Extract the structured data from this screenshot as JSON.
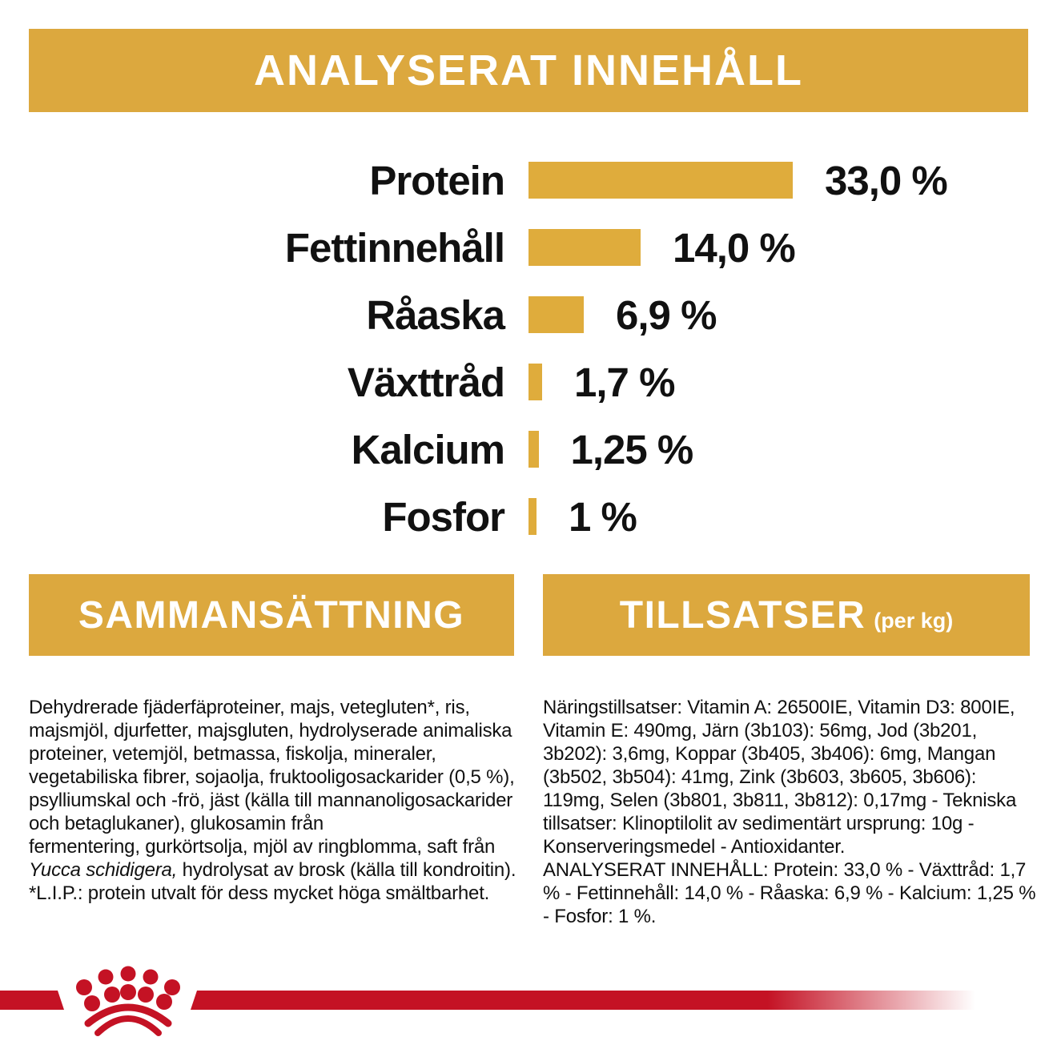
{
  "header": {
    "title": "ANALYSERAT INNEHÅLL"
  },
  "chart_data": {
    "type": "bar",
    "orientation": "horizontal",
    "title": "ANALYSERAT INNEHÅLL",
    "categories": [
      "Protein",
      "Fettinnehåll",
      "Råaska",
      "Växttråd",
      "Kalcium",
      "Fosfor"
    ],
    "values": [
      33.0,
      14.0,
      6.9,
      1.7,
      1.25,
      1.0
    ],
    "value_labels": [
      "33,0 %",
      "14,0 %",
      "6,9 %",
      "1,7 %",
      "1,25 %",
      "1 %"
    ],
    "unit": "%",
    "xlim": [
      0,
      33
    ],
    "grid": false,
    "bar_color": "#DFAC3C"
  },
  "composition": {
    "heading": "SAMMANSÄTTNING",
    "text_before_italic": "Dehydrerade fjäderfäproteiner, majs, vetegluten*, ris, majsmjöl, djurfetter, majsgluten, hydrolyserade animaliska proteiner, vetemjöl, betmassa, fiskolja, mineraler, vegetabiliska fibrer, sojaolja, fruktooligosackarider (0,5 %), psylliumskal och -frö, jäst (källa till mannanoligosackarider och betaglukaner), glukosamin från\nfermentering, gurkörtsolja, mjöl av ringblomma, saft från ",
    "italic": "Yucca schidigera,",
    "text_after_italic": " hydrolysat av brosk (källa till kondroitin). *L.I.P.: protein utvalt för dess mycket höga smältbarhet."
  },
  "additives": {
    "heading": "TILLSATSER",
    "heading_suffix": "(per kg)",
    "text": "Näringstillsatser: Vitamin A: 26500IE, Vitamin D3: 800IE, Vitamin E: 490mg, Järn (3b103): 56mg, Jod (3b201, 3b202): 3,6mg, Koppar (3b405, 3b406): 6mg, Mangan (3b502, 3b504): 41mg, Zink (3b603, 3b605, 3b606): 119mg, Selen (3b801, 3b811, 3b812): 0,17mg - Tekniska tillsatser: Klinoptilolit av sedimentärt ursprung: 10g - Konserveringsmedel - Antioxidanter.\nANALYSERAT INNEHÅLL: Protein: 33,0 % - Växttråd: 1,7 % - Fettinnehåll: 14,0 % - Råaska: 6,9 % - Kalcium: 1,25 % - Fosfor: 1 %."
  },
  "footer": {
    "logo": "royal-canin-crown"
  },
  "colors": {
    "gold": "#DCA83E",
    "red": "#C41224",
    "text": "#111111",
    "banner_text": "#FFFFFF",
    "background": "#FFFFFF"
  }
}
